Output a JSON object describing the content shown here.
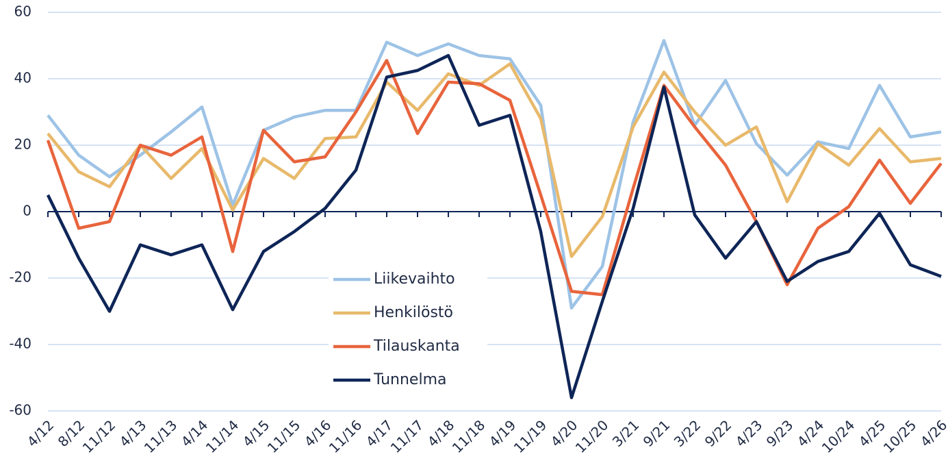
{
  "chart_data": {
    "type": "line",
    "categories": [
      "4/12",
      "8/12",
      "11/12",
      "4/13",
      "11/13",
      "4/14",
      "11/14",
      "4/15",
      "11/15",
      "4/16",
      "11/16",
      "4/17",
      "11/17",
      "4/18",
      "11/18",
      "4/19",
      "11/19",
      "4/20",
      "11/20",
      "3/21",
      "9/21",
      "3/22",
      "9/22",
      "4/23",
      "9/23",
      "4/24",
      "10/24",
      "4/25",
      "10/25",
      "4/26"
    ],
    "series": [
      {
        "name": "Liikevaihto",
        "color": "#9dc3e6",
        "values": [
          29,
          17,
          10.5,
          17,
          24,
          31.5,
          2,
          24.5,
          28.5,
          30.5,
          30.5,
          51,
          47,
          50.5,
          47,
          46,
          32,
          -29,
          -16.5,
          27,
          51.5,
          26,
          39.5,
          20.5,
          11,
          21,
          19,
          38,
          22.5,
          24
        ]
      },
      {
        "name": "Henkilöstö",
        "color": "#e8b96b",
        "values": [
          23.5,
          12,
          7.5,
          20,
          10,
          19,
          0.5,
          16,
          10,
          22,
          22.5,
          39,
          30.5,
          41.5,
          38,
          44.5,
          28,
          -13.5,
          -1.5,
          25.5,
          42,
          30,
          20,
          25.5,
          3,
          20.5,
          14,
          25,
          15,
          16
        ]
      },
      {
        "name": "Tilauskanta",
        "color": "#e8643c",
        "values": [
          21.5,
          -5,
          -3,
          20,
          17,
          22.5,
          -12,
          24.5,
          15,
          16.5,
          30,
          45.5,
          23.5,
          39,
          38.5,
          33.5,
          5,
          -24,
          -25,
          7,
          38,
          25.5,
          14,
          -3,
          -22,
          -5,
          1.5,
          15.5,
          2.5,
          14.5
        ]
      },
      {
        "name": "Tunnelma",
        "color": "#0e2557",
        "values": [
          5,
          -14,
          -30,
          -10,
          -13,
          -10,
          -29.5,
          -12,
          -6,
          1,
          12.5,
          40.5,
          42.5,
          47,
          26,
          29,
          -6,
          -56,
          -27,
          1,
          37.5,
          -1,
          -14,
          -3,
          -21,
          -15,
          -12,
          -0.5,
          -16,
          -19.5
        ]
      }
    ],
    "ylim": [
      -60,
      60
    ],
    "yticks": [
      -60,
      -40,
      -20,
      0,
      20,
      40,
      60
    ],
    "grid": true,
    "legend": "center"
  }
}
